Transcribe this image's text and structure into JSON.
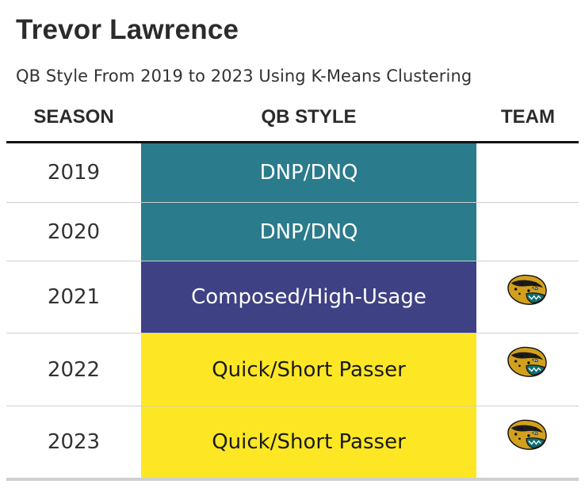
{
  "title": "Trevor Lawrence",
  "subtitle": "QB Style From 2019 to 2023 Using K-Means Clustering",
  "columns": {
    "season": "SEASON",
    "style": "QB STYLE",
    "team": "TEAM"
  },
  "colors": {
    "DNP/DNQ": "#2a7b8c",
    "Composed/High-Usage": "#3f4185",
    "Quick/Short Passer": "#fde725"
  },
  "chart_data": {
    "type": "table",
    "title": "Trevor Lawrence",
    "subtitle": "QB Style From 2019 to 2023 Using K-Means Clustering",
    "columns": [
      "SEASON",
      "QB STYLE",
      "TEAM"
    ],
    "rows": [
      {
        "season": "2019",
        "style": "DNP/DNQ",
        "team_logo": ""
      },
      {
        "season": "2020",
        "style": "DNP/DNQ",
        "team_logo": ""
      },
      {
        "season": "2021",
        "style": "Composed/High-Usage",
        "team_logo": "jaguar-head-icon"
      },
      {
        "season": "2022",
        "style": "Quick/Short Passer",
        "team_logo": "jaguar-head-icon"
      },
      {
        "season": "2023",
        "style": "Quick/Short Passer",
        "team_logo": "jaguar-head-icon"
      }
    ]
  }
}
